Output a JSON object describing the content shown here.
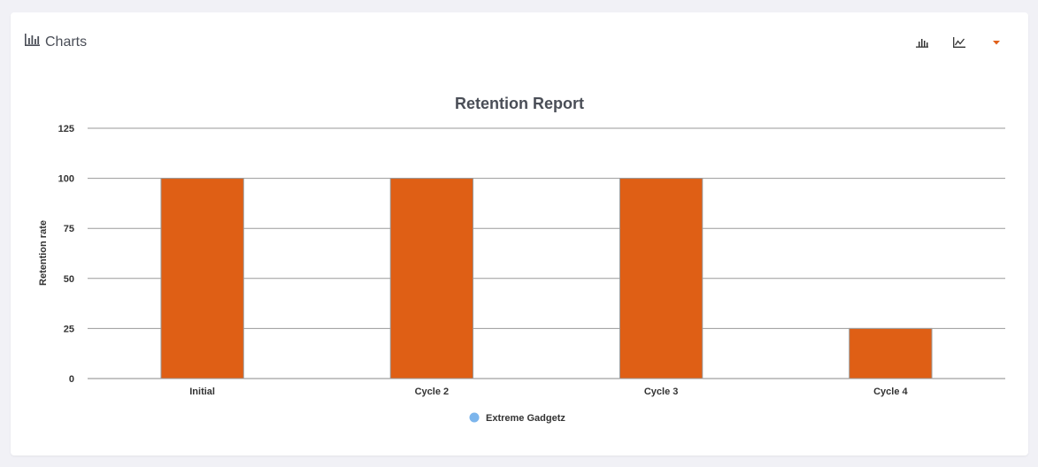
{
  "header": {
    "title": "Charts",
    "icon": "bar-chart-icon"
  },
  "toolbar": {
    "buttons": [
      {
        "icon": "bar-chart-icon"
      },
      {
        "icon": "line-chart-icon"
      },
      {
        "icon": "caret-down-icon",
        "color": "#e0601a"
      }
    ]
  },
  "chart_data": {
    "type": "bar",
    "title": "Retention Report",
    "xlabel": "",
    "ylabel": "Retention rate",
    "categories": [
      "Initial",
      "Cycle 2",
      "Cycle 3",
      "Cycle 4"
    ],
    "series": [
      {
        "name": "Extreme Gadgetz",
        "values": [
          100,
          100,
          100,
          25
        ]
      }
    ],
    "ylim": [
      0,
      125
    ],
    "yticks": [
      0,
      25,
      50,
      75,
      100,
      125
    ],
    "grid": true,
    "legend_position": "bottom",
    "bar_color": "#df5f15",
    "legend_marker_color": "#7cb5ec"
  }
}
